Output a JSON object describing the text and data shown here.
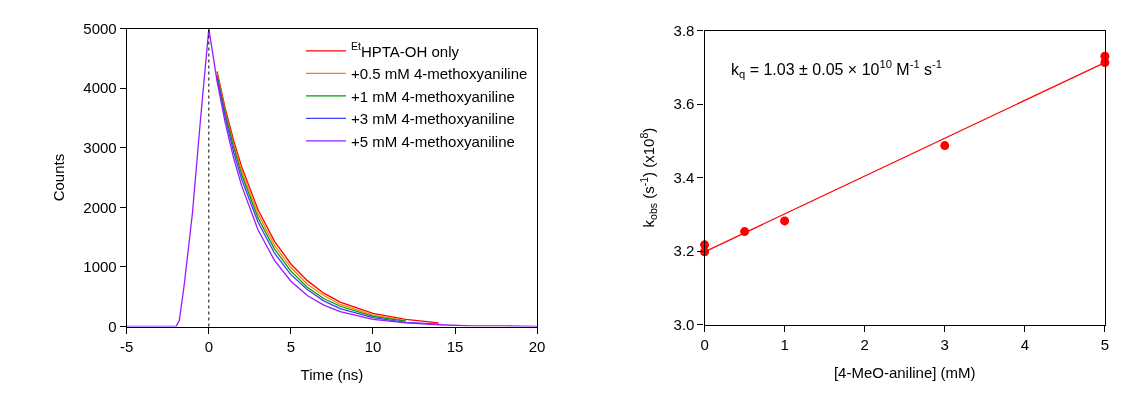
{
  "chart_data": [
    {
      "type": "line",
      "xlabel": "Time (ns)",
      "ylabel": "Counts",
      "xlim": [
        -5,
        20
      ],
      "ylim": [
        0,
        5000
      ],
      "xticks": [
        -5,
        0,
        5,
        10,
        15,
        20
      ],
      "yticks": [
        0,
        1000,
        2000,
        3000,
        4000,
        5000
      ],
      "legend": "top right",
      "marker": "none",
      "line_style": "solid",
      "x": [
        -5,
        -2,
        -1.8,
        -1.5,
        -1,
        -0.5,
        0,
        0.5,
        1,
        1.5,
        2,
        3,
        4,
        5,
        6,
        7,
        8,
        10,
        12,
        14,
        16,
        18,
        20
      ],
      "series": [
        {
          "name": "$^{Et}$HPTA-OH only",
          "color": "#ff0000",
          "values": [
            null,
            null,
            null,
            null,
            null,
            null,
            null,
            4280,
            3660,
            3130,
            2680,
            1960,
            1430,
            1050,
            770,
            560,
            410,
            220,
            120,
            60,
            null,
            null,
            null
          ]
        },
        {
          "name": "+0.5 mM 4-methoxyaniline",
          "color": "#ff8000",
          "values": [
            null,
            null,
            null,
            null,
            null,
            null,
            null,
            4250,
            3610,
            3070,
            2610,
            1890,
            1360,
            990,
            710,
            520,
            370,
            190,
            100,
            null,
            null,
            null,
            null
          ]
        },
        {
          "name": "+1 mM 4-methoxyaniline",
          "color": "#00a000",
          "values": [
            null,
            null,
            null,
            null,
            null,
            null,
            null,
            4220,
            3570,
            3020,
            2550,
            1820,
            1300,
            930,
            660,
            470,
            340,
            170,
            90,
            null,
            null,
            null,
            null
          ]
        },
        {
          "name": "+3 mM 4-methoxyaniline",
          "color": "#4040ff",
          "values": [
            null,
            null,
            null,
            null,
            null,
            null,
            null,
            4180,
            3510,
            2940,
            2470,
            1750,
            1230,
            870,
            620,
            430,
            300,
            150,
            70,
            40,
            null,
            null,
            null
          ]
        },
        {
          "name": "+5 mM 4-methoxyaniline",
          "color": "#9a1aff",
          "values": [
            0,
            0,
            100,
            700,
            1900,
            3500,
            5000,
            4120,
            3420,
            2840,
            2360,
            1620,
            1110,
            760,
            520,
            360,
            250,
            120,
            60,
            30,
            10,
            10,
            0
          ]
        }
      ],
      "ref_lines": [
        {
          "axis": "x",
          "value": 0,
          "color": "#000000",
          "line_style": "dotted"
        }
      ]
    },
    {
      "type": "scatter",
      "xlabel": "[4-MeO-aniline] (mM)",
      "ylabel": "k$_{obs}$ (s$^{-1}$) (x10$^{8}$)",
      "xlim": [
        0,
        5
      ],
      "ylim": [
        3.0,
        3.8
      ],
      "xticks": [
        0,
        1,
        2,
        3,
        4,
        5
      ],
      "yticks": [
        {
          "value": 3.0,
          "label": "3.0"
        },
        {
          "value": 3.2,
          "label": "3.2"
        },
        {
          "value": 3.4,
          "label": "3.4"
        },
        {
          "value": 3.6,
          "label": "3.6"
        },
        {
          "value": 3.8,
          "label": "3.8"
        }
      ],
      "marker": "circle",
      "x": [
        0,
        0.5,
        1,
        3,
        5
      ],
      "series": [
        {
          "color": "#ff0000",
          "values": [
            3.217,
            3.253,
            3.282,
            3.487,
            3.73
          ]
        },
        {
          "type": "line",
          "color": "#ff0000",
          "x": [
            0,
            5
          ],
          "values": [
            3.198,
            3.713
          ]
        }
      ],
      "annotations": [
        "k$_{q}$ = 1.03 ± 0.05 × 10$^{10}$ M$^{-1}$ s$^{-1}$"
      ]
    }
  ]
}
